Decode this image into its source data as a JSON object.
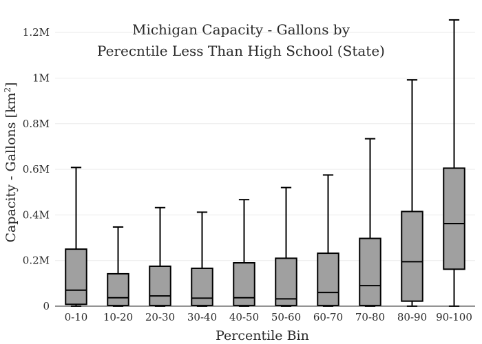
{
  "chart_data": {
    "type": "box",
    "title_lines": [
      "Michigan Capacity - Gallons by",
      "Perecntile Less Than High School (State)"
    ],
    "xlabel": "Percentile Bin",
    "ylabel_prefix": "Capacity - Gallons  [km",
    "ylabel_sup": "2",
    "ylabel_suffix": "]",
    "ylim": [
      0,
      1300000
    ],
    "yticks": [
      {
        "value": 0,
        "label": "0"
      },
      {
        "value": 200000,
        "label": "0.2M"
      },
      {
        "value": 400000,
        "label": "0.4M"
      },
      {
        "value": 600000,
        "label": "0.6M"
      },
      {
        "value": 800000,
        "label": "0.8M"
      },
      {
        "value": 1000000,
        "label": "1M"
      },
      {
        "value": 1200000,
        "label": "1.2M"
      }
    ],
    "grid": true,
    "box_color": "#a0a0a0",
    "line_color": "#000000",
    "categories": [
      "0-10",
      "10-20",
      "20-30",
      "30-40",
      "40-50",
      "50-60",
      "60-70",
      "70-80",
      "80-90",
      "90-100"
    ],
    "boxes": [
      {
        "min": 0,
        "q1": 8000,
        "median": 70000,
        "q3": 250000,
        "max": 608000
      },
      {
        "min": 0,
        "q1": 3000,
        "median": 37000,
        "q3": 142000,
        "max": 347000
      },
      {
        "min": 0,
        "q1": 3000,
        "median": 45000,
        "q3": 175000,
        "max": 432000
      },
      {
        "min": 0,
        "q1": 3000,
        "median": 35000,
        "q3": 166000,
        "max": 412000
      },
      {
        "min": 0,
        "q1": 3000,
        "median": 37000,
        "q3": 190000,
        "max": 467000
      },
      {
        "min": 0,
        "q1": 3000,
        "median": 32000,
        "q3": 210000,
        "max": 520000
      },
      {
        "min": 0,
        "q1": 3000,
        "median": 60000,
        "q3": 232000,
        "max": 575000
      },
      {
        "min": 0,
        "q1": 3000,
        "median": 90000,
        "q3": 297000,
        "max": 734000
      },
      {
        "min": 0,
        "q1": 22000,
        "median": 195000,
        "q3": 415000,
        "max": 992000
      },
      {
        "min": 0,
        "q1": 162000,
        "median": 362000,
        "q3": 605000,
        "max": 1255000
      }
    ]
  }
}
